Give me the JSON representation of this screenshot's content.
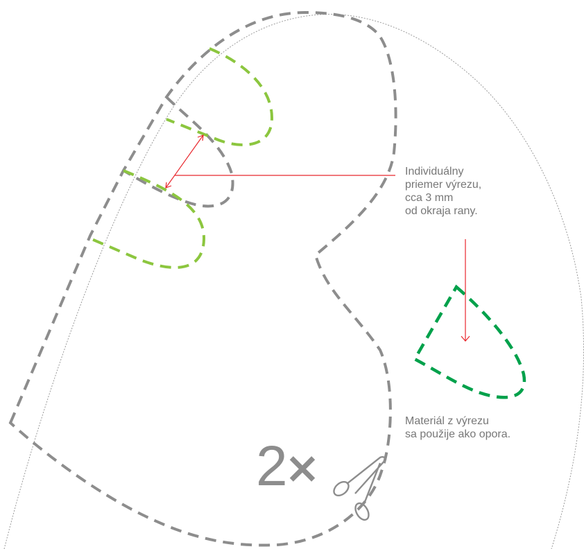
{
  "annotations": {
    "diameter_note": [
      "Individuálny",
      "priemer výrezu,",
      "cca 3 mm",
      "od okraja rany."
    ],
    "material_note": [
      "Materiál z výrezu",
      "sa použije ako opora."
    ]
  },
  "quantity_label": "2",
  "multiply_sign": "×",
  "icons": {
    "cut_tool": "scissors-icon"
  },
  "colors": {
    "template_outline": "#8d8d8d",
    "cut_outline_light": "#8cc63f",
    "cut_outline_dark": "#00a14b",
    "dimension_line": "#e8262c",
    "sheet_edge": "#9a9a9a",
    "text": "#777777"
  }
}
